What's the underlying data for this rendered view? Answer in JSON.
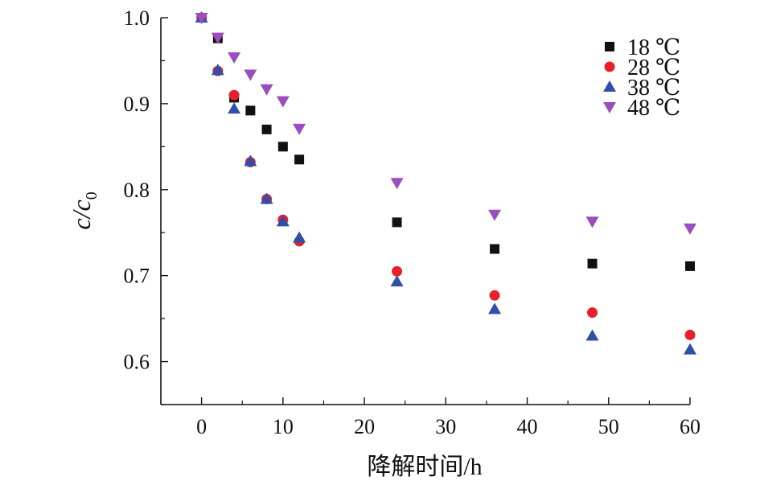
{
  "chart_data": {
    "type": "scatter",
    "xlabel": "降解时间/h",
    "ylabel_main": "c/c",
    "ylabel_sub": "0",
    "xlim": [
      -5,
      60
    ],
    "ylim": [
      0.55,
      1.0
    ],
    "xticks": [
      0,
      10,
      20,
      30,
      40,
      50,
      60
    ],
    "yticks": [
      0.6,
      0.7,
      0.8,
      0.9,
      1.0
    ],
    "xtick_labels": [
      "0",
      "10",
      "20",
      "30",
      "40",
      "50",
      "60"
    ],
    "ytick_labels": [
      "0.6",
      "0.7",
      "0.8",
      "0.9",
      "1.0"
    ],
    "legend_position": "top-right",
    "series": [
      {
        "name": "18 ℃",
        "marker": "square",
        "color": "#111111",
        "points": [
          [
            0,
            1.0
          ],
          [
            2,
            0.976
          ],
          [
            4,
            0.907
          ],
          [
            6,
            0.892
          ],
          [
            8,
            0.87
          ],
          [
            10,
            0.85
          ],
          [
            12,
            0.835
          ],
          [
            24,
            0.762
          ],
          [
            36,
            0.731
          ],
          [
            48,
            0.714
          ],
          [
            60,
            0.711
          ]
        ]
      },
      {
        "name": "28 ℃",
        "marker": "circle",
        "color": "#e8202a",
        "points": [
          [
            0,
            1.0
          ],
          [
            2,
            0.938
          ],
          [
            4,
            0.91
          ],
          [
            6,
            0.832
          ],
          [
            8,
            0.789
          ],
          [
            10,
            0.765
          ],
          [
            12,
            0.74
          ],
          [
            24,
            0.705
          ],
          [
            36,
            0.677
          ],
          [
            48,
            0.657
          ],
          [
            60,
            0.631
          ]
        ]
      },
      {
        "name": "38 ℃",
        "marker": "triangle-up",
        "color": "#2f4fa8",
        "points": [
          [
            0,
            1.0
          ],
          [
            2,
            0.939
          ],
          [
            4,
            0.894
          ],
          [
            6,
            0.833
          ],
          [
            8,
            0.789
          ],
          [
            10,
            0.763
          ],
          [
            12,
            0.744
          ],
          [
            24,
            0.693
          ],
          [
            36,
            0.661
          ],
          [
            48,
            0.63
          ],
          [
            60,
            0.614
          ]
        ]
      },
      {
        "name": "48 ℃",
        "marker": "triangle-down",
        "color": "#9b4dc0",
        "points": [
          [
            0,
            1.0
          ],
          [
            2,
            0.977
          ],
          [
            4,
            0.954
          ],
          [
            6,
            0.934
          ],
          [
            8,
            0.917
          ],
          [
            10,
            0.903
          ],
          [
            12,
            0.871
          ],
          [
            24,
            0.808
          ],
          [
            36,
            0.771
          ],
          [
            48,
            0.763
          ],
          [
            60,
            0.755
          ]
        ]
      }
    ]
  }
}
